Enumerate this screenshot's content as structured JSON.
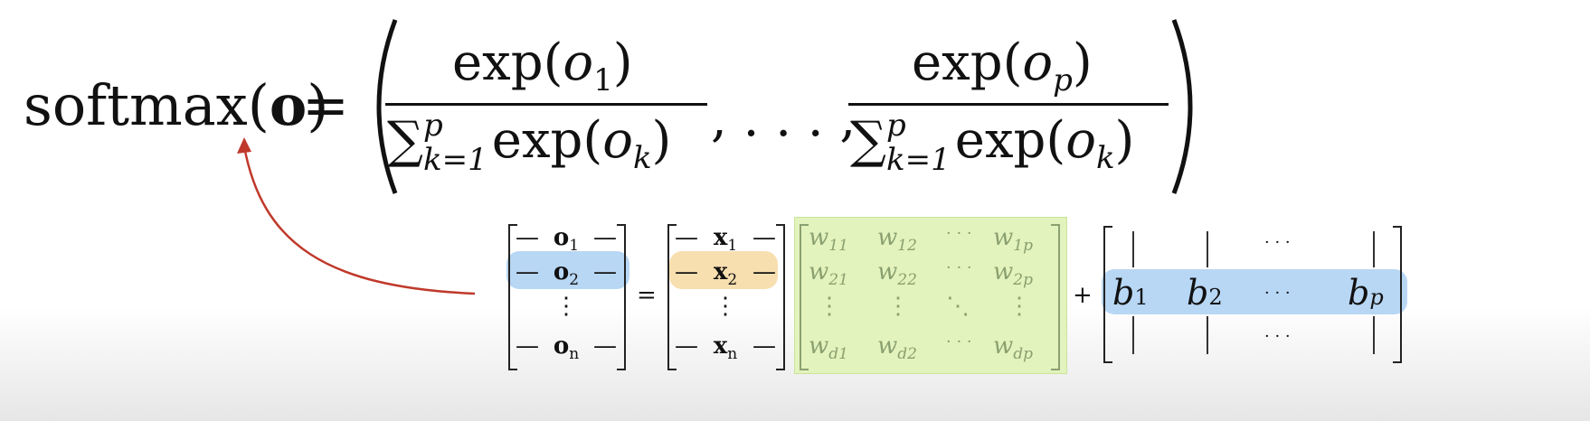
{
  "formula": {
    "lhs_func": "softmax(",
    "lhs_arg": "o",
    "lhs_close": ")",
    "equals": "=",
    "left_paren": "(",
    "right_paren": ")",
    "num1_func": "exp(",
    "num1_var": "o",
    "num1_sub": "1",
    "num1_close": ")",
    "den_sum": "∑",
    "den_sup": "p",
    "den_sub": "k=1",
    "den_func": "exp(",
    "den_var": "o",
    "den_var_sub": "k",
    "den_close": ")",
    "ellipsis": ", . . . ,",
    "num2_func": "exp(",
    "num2_var": "o",
    "num2_sub": "p",
    "num2_close": ")"
  },
  "matrix_eq": {
    "O_rows": [
      {
        "dash": "—",
        "sym": "o",
        "sub": "1"
      },
      {
        "dash": "—",
        "sym": "o",
        "sub": "2"
      },
      {
        "dash": "",
        "sym": "⋮",
        "sub": ""
      },
      {
        "dash": "—",
        "sym": "o",
        "sub": "n"
      }
    ],
    "equals": "=",
    "X_rows": [
      {
        "dash": "—",
        "sym": "x",
        "sub": "1"
      },
      {
        "dash": "—",
        "sym": "x",
        "sub": "2"
      },
      {
        "dash": "",
        "sym": "⋮",
        "sub": ""
      },
      {
        "dash": "—",
        "sym": "x",
        "sub": "n"
      }
    ],
    "W_rows": [
      [
        "w",
        "11",
        "w",
        "12",
        "· · ·",
        "",
        "w",
        "1p"
      ],
      [
        "w",
        "21",
        "w",
        "22",
        "· · ·",
        "",
        "w",
        "2p"
      ],
      [
        "⋮",
        "",
        "⋮",
        "",
        "⋱",
        "",
        "⋮",
        ""
      ],
      [
        "w",
        "d1",
        "w",
        "d2",
        "· · ·",
        "",
        "w",
        "dp"
      ]
    ],
    "plus": "+",
    "B": {
      "top_dots": "· · ·",
      "b1": "b",
      "b1_sub": "1",
      "b2": "b",
      "b2_sub": "2",
      "mid_dots": "· · ·",
      "bp": "b",
      "bp_sub": "p",
      "bot_dots": "· · ·"
    }
  },
  "colors": {
    "arrow": "#c0392b",
    "highlight_blue": "#b8d7f5",
    "highlight_orange": "#f8dfb0",
    "highlight_green": "#e3f3bd"
  }
}
